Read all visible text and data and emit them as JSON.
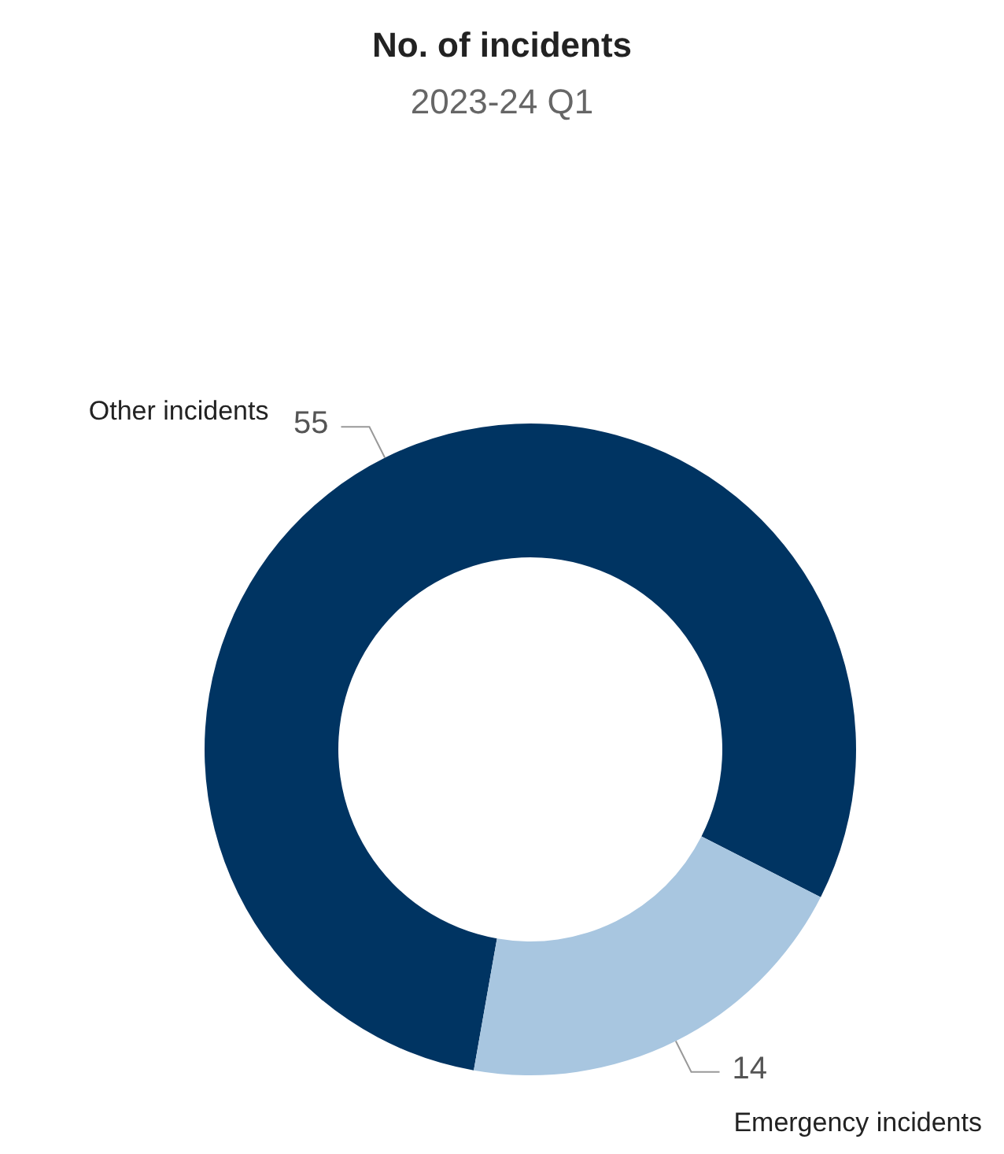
{
  "chart_data": {
    "type": "donut",
    "title": "No. of incidents",
    "subtitle": "2023-24 Q1",
    "categories": [
      "Other incidents",
      "Emergency incidents"
    ],
    "values": [
      55,
      14
    ],
    "colors": [
      "#003462",
      "#a8c6e0"
    ],
    "data_labels": true
  }
}
